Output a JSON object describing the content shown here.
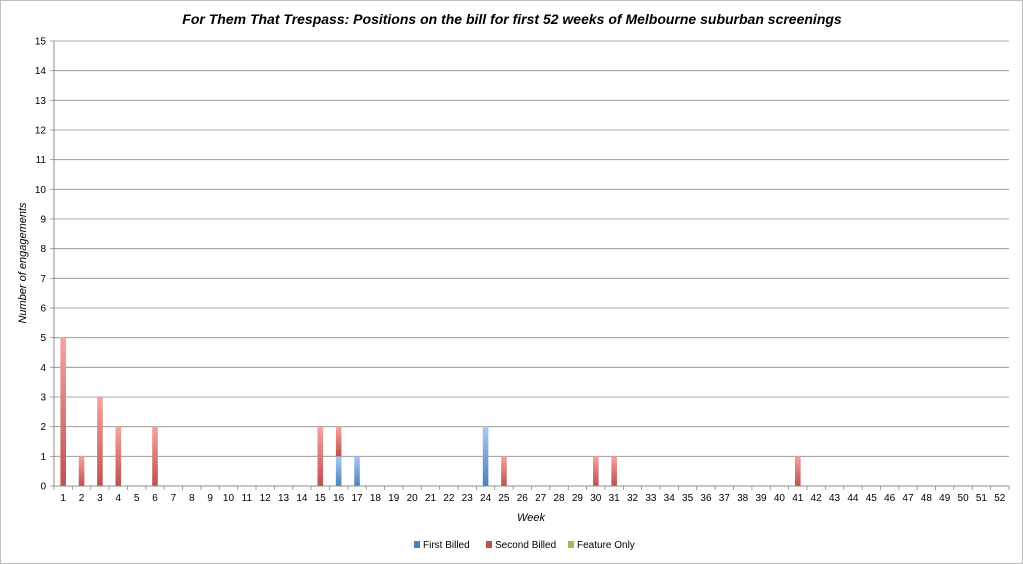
{
  "chart_data": {
    "type": "bar",
    "stacked": true,
    "title": "For Them That Trespass: Positions on the bill for first 52 weeks of Melbourne suburban screenings",
    "xlabel": "Week",
    "ylabel": "Number of engagements",
    "ylim": [
      0,
      15
    ],
    "yticks": [
      "0",
      "1",
      "2",
      "3",
      "4",
      "5",
      "6",
      "7",
      "8",
      "9",
      "10",
      "11",
      "12",
      "13",
      "14",
      "15"
    ],
    "categories": [
      "1",
      "2",
      "3",
      "4",
      "5",
      "6",
      "7",
      "8",
      "9",
      "10",
      "11",
      "12",
      "13",
      "14",
      "15",
      "16",
      "17",
      "18",
      "19",
      "20",
      "21",
      "22",
      "23",
      "24",
      "25",
      "26",
      "27",
      "28",
      "29",
      "30",
      "31",
      "32",
      "33",
      "34",
      "35",
      "36",
      "37",
      "38",
      "39",
      "40",
      "41",
      "42",
      "43",
      "44",
      "45",
      "46",
      "47",
      "48",
      "49",
      "50",
      "51",
      "52"
    ],
    "series": [
      {
        "name": "First Billed",
        "color": "#4f81bd",
        "color_light": "#a9c8f2",
        "values": [
          0,
          0,
          0,
          0,
          0,
          0,
          0,
          0,
          0,
          0,
          0,
          0,
          0,
          0,
          0,
          1,
          1,
          0,
          0,
          0,
          0,
          0,
          0,
          2,
          0,
          0,
          0,
          0,
          0,
          0,
          0,
          0,
          0,
          0,
          0,
          0,
          0,
          0,
          0,
          0,
          0,
          0,
          0,
          0,
          0,
          0,
          0,
          0,
          0,
          0,
          0,
          0
        ]
      },
      {
        "name": "Second Billed",
        "color": "#c0504d",
        "color_light": "#f5a3a1",
        "values": [
          5,
          1,
          3,
          2,
          0,
          2,
          0,
          0,
          0,
          0,
          0,
          0,
          0,
          0,
          2,
          1,
          0,
          0,
          0,
          0,
          0,
          0,
          0,
          0,
          1,
          0,
          0,
          0,
          0,
          1,
          1,
          0,
          0,
          0,
          0,
          0,
          0,
          0,
          0,
          0,
          1,
          0,
          0,
          0,
          0,
          0,
          0,
          0,
          0,
          0,
          0,
          0
        ]
      },
      {
        "name": "Feature Only",
        "color": "#9bbb59",
        "color_light": "#cde3a6",
        "values": [
          0,
          0,
          0,
          0,
          0,
          0,
          0,
          0,
          0,
          0,
          0,
          0,
          0,
          0,
          0,
          0,
          0,
          0,
          0,
          0,
          0,
          0,
          0,
          0,
          0,
          0,
          0,
          0,
          0,
          0,
          0,
          0,
          0,
          0,
          0,
          0,
          0,
          0,
          0,
          0,
          0,
          0,
          0,
          0,
          0,
          0,
          0,
          0,
          0,
          0,
          0,
          0
        ]
      }
    ],
    "grid": true,
    "legend_position": "bottom"
  }
}
